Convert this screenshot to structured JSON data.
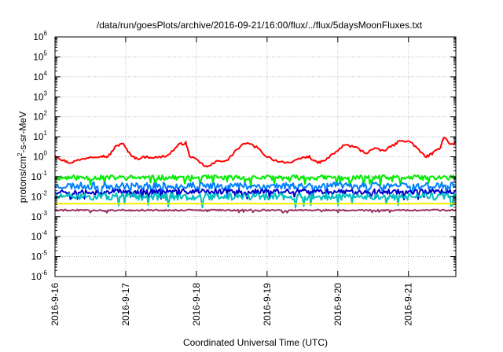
{
  "chart_data": {
    "type": "line",
    "title": "/data/run/goesPlots/archive/2016-09-21/16:00/flux/../flux/5daysMoonFluxes.txt",
    "xlabel": "Coordinated Universal Time (UTC)",
    "ylabel": {
      "prefix": "protons/cm",
      "sup": "2",
      "suffix": "-s-sr-MeV"
    },
    "yscale": "log",
    "ylim_exp": [
      -6,
      6
    ],
    "y_tick_exponents": [
      -6,
      -5,
      -4,
      -3,
      -2,
      -1,
      0,
      1,
      2,
      3,
      4,
      5,
      6
    ],
    "y_tick_base": "10",
    "x_ticks": [
      "2016-9-16",
      "2016-9-17",
      "2016-9-18",
      "2016-9-19",
      "2016-9-20",
      "2016-9-21"
    ],
    "xlim_days": [
      0,
      5.67
    ],
    "grid": true,
    "series": [
      {
        "color": "#ff0000",
        "x": [
          0,
          0.1,
          0.2,
          0.35,
          0.5,
          0.65,
          0.75,
          0.85,
          0.95,
          1.05,
          1.15,
          1.3,
          1.45,
          1.6,
          1.75,
          1.85,
          1.9,
          2.05,
          2.15,
          2.3,
          2.45,
          2.55,
          2.7,
          2.85,
          3.0,
          3.15,
          3.35,
          3.5,
          3.6,
          3.7,
          3.8,
          3.95,
          4.1,
          4.25,
          4.4,
          4.5,
          4.65,
          4.8,
          4.9,
          5.05,
          5.15,
          5.25,
          5.35,
          5.45,
          5.5,
          5.6,
          5.67
        ],
        "y": [
          1.2,
          0.7,
          0.5,
          0.7,
          1.0,
          1.1,
          1.0,
          3.0,
          5.0,
          1.5,
          0.8,
          1.0,
          0.9,
          1.2,
          4.0,
          5.0,
          1.2,
          0.5,
          0.3,
          0.6,
          0.7,
          2.0,
          5.0,
          3.0,
          1.0,
          0.6,
          0.5,
          0.9,
          1.0,
          0.5,
          0.6,
          1.5,
          4.0,
          3.0,
          1.5,
          2.5,
          2.0,
          4.0,
          7.0,
          5.0,
          2.0,
          1.0,
          1.5,
          3.0,
          10.0,
          4.0,
          5.0
        ]
      },
      {
        "color": "#00ee00",
        "x": [
          0,
          5.67
        ],
        "base": 0.09,
        "amp": 0.25,
        "seed": 11
      },
      {
        "color": "#0080ff",
        "x": [
          0,
          5.67
        ],
        "base": 0.035,
        "amp": 0.35,
        "seed": 23
      },
      {
        "color": "#0000cc",
        "x": [
          0,
          5.67
        ],
        "base": 0.018,
        "amp": 0.25,
        "seed": 37
      },
      {
        "color": "#00c0c0",
        "x": [
          0,
          5.67
        ],
        "base": 0.01,
        "amp": 0.35,
        "seed": 51
      },
      {
        "color": "#f0f000",
        "x": [
          0,
          5.67
        ],
        "base": 0.0045,
        "amp": 0.02,
        "seed": 67
      },
      {
        "color": "#993366",
        "x": [
          0,
          5.67
        ],
        "base": 0.0021,
        "amp": 0.08,
        "seed": 79
      }
    ]
  }
}
